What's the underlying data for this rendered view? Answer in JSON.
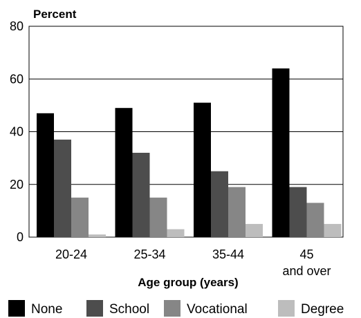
{
  "chart_data": {
    "type": "bar",
    "ylabel": "Percent",
    "xlabel": "Age group (years)",
    "ylim": [
      0,
      80
    ],
    "yticks": [
      0,
      20,
      40,
      60,
      80
    ],
    "grid": true,
    "legend_position": "bottom",
    "categories": [
      [
        "20-24"
      ],
      [
        "25-34"
      ],
      [
        "35-44"
      ],
      [
        "45",
        "and over"
      ]
    ],
    "series": [
      {
        "name": "None",
        "color": "#000000",
        "values": [
          47,
          49,
          51,
          64
        ]
      },
      {
        "name": "School",
        "color": "#4d4d4d",
        "values": [
          37,
          32,
          25,
          19
        ]
      },
      {
        "name": "Vocational",
        "color": "#868686",
        "values": [
          15,
          15,
          19,
          13
        ]
      },
      {
        "name": "Degree",
        "color": "#bdbdbd",
        "values": [
          1,
          3,
          5,
          5
        ]
      }
    ]
  }
}
